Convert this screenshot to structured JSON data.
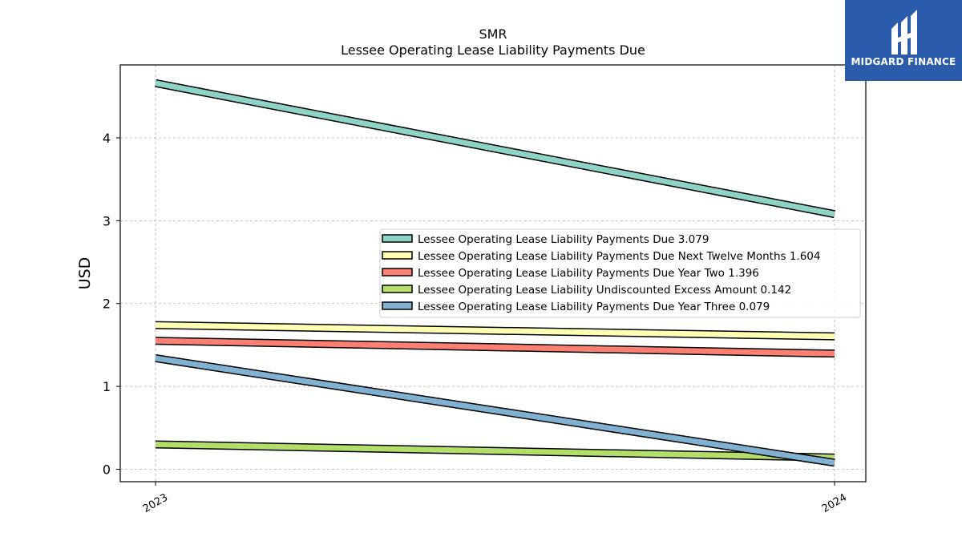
{
  "brand": {
    "name": "MIDGARD FINANCE",
    "color": "#2b5cab"
  },
  "chart_data": {
    "type": "line",
    "title": "SMR",
    "subtitle": "Lessee Operating Lease Liability Payments Due",
    "xlabel": "",
    "ylabel": "USD",
    "x": [
      "2023",
      "2024"
    ],
    "ylim": [
      -0.15,
      4.88
    ],
    "yticks": [
      0,
      1,
      2,
      3,
      4
    ],
    "grid": true,
    "legend_position": "center-right",
    "series": [
      {
        "name": "Lessee Operating Lease Liability Payments Due",
        "legend_value": "3.079",
        "values": [
          4.66,
          3.079
        ],
        "color": "#8dd3c7"
      },
      {
        "name": "Lessee Operating Lease Liability Payments Due Next Twelve Months",
        "legend_value": "1.604",
        "values": [
          1.74,
          1.604
        ],
        "color": "#ffffb3"
      },
      {
        "name": "Lessee Operating Lease Liability Payments Due Year Two",
        "legend_value": "1.396",
        "values": [
          1.55,
          1.396
        ],
        "color": "#fb8072"
      },
      {
        "name": "Lessee Operating Lease Liability Undiscounted Excess Amount",
        "legend_value": "0.142",
        "values": [
          0.3,
          0.142
        ],
        "color": "#b3de69"
      },
      {
        "name": "Lessee Operating Lease Liability Payments Due Year Three",
        "legend_value": "0.079",
        "values": [
          1.34,
          0.079
        ],
        "color": "#80b1d3"
      }
    ]
  }
}
